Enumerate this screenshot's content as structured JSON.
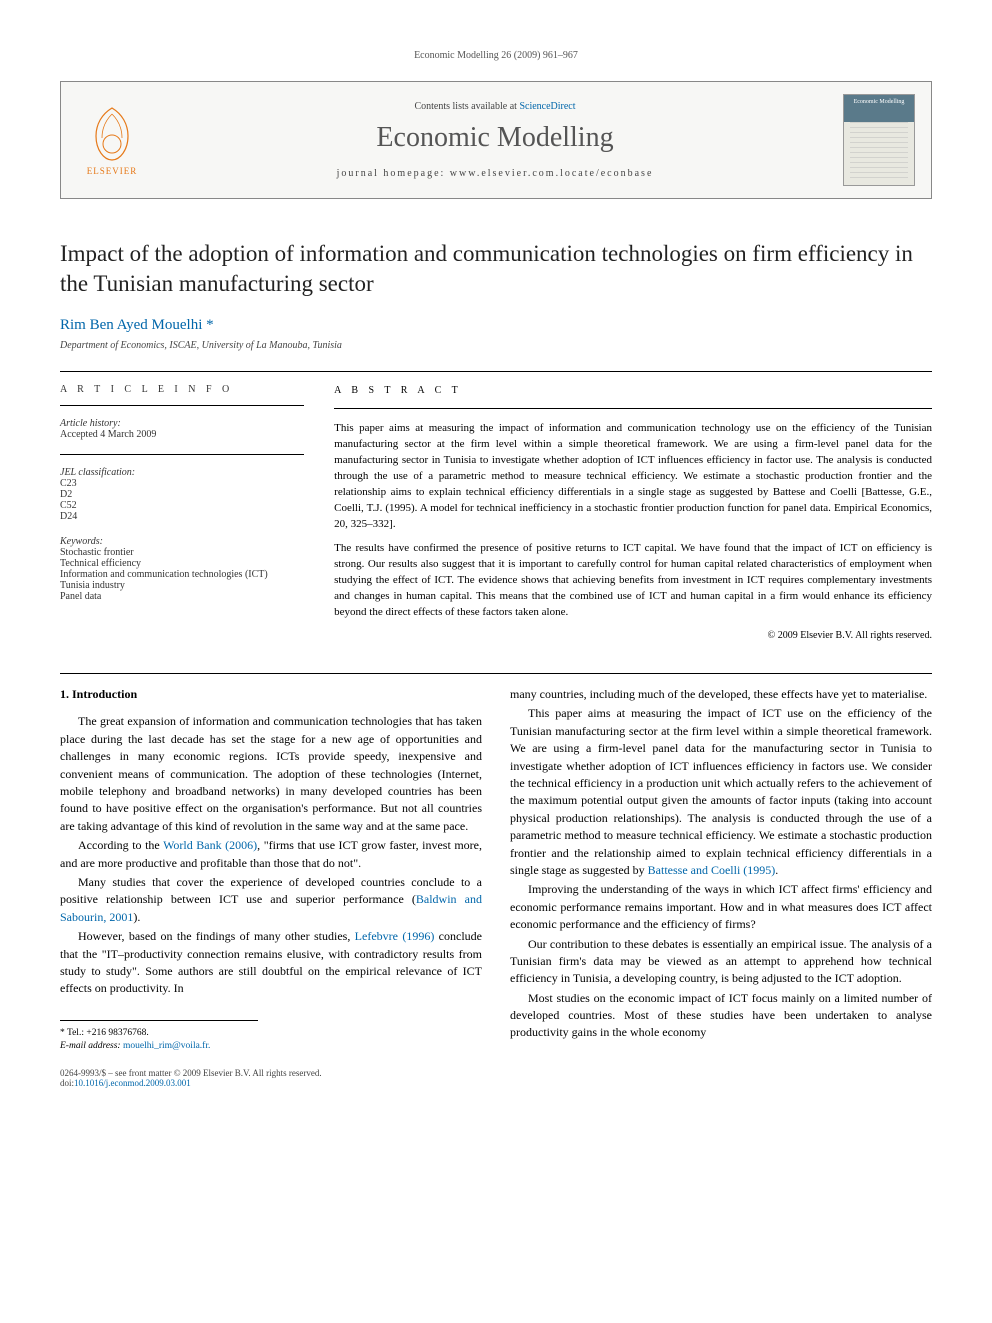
{
  "runningHeader": "Economic Modelling 26 (2009) 961–967",
  "header": {
    "contentsLine": "Contents lists available at",
    "contentsLink": "ScienceDirect",
    "journalName": "Economic Modelling",
    "homepageLabel": "journal homepage: www.elsevier.com.locate/econbase",
    "elsevierLabel": "ELSEVIER",
    "coverLabel": "Economic Modelling"
  },
  "title": "Impact of the adoption of information and communication technologies on firm efficiency in the Tunisian manufacturing sector",
  "author": "Rim Ben Ayed Mouelhi",
  "authorMark": "*",
  "affiliation": "Department of Economics, ISCAE, University of La Manouba, Tunisia",
  "info": {
    "heading": "A R T I C L E   I N F O",
    "historyLabel": "Article history:",
    "history": "Accepted 4 March 2009",
    "jelLabel": "JEL classification:",
    "jel": [
      "C23",
      "D2",
      "C52",
      "D24"
    ],
    "keywordsLabel": "Keywords:",
    "keywords": [
      "Stochastic frontier",
      "Technical efficiency",
      "Information and communication technologies (ICT)",
      "Tunisia industry",
      "Panel data"
    ]
  },
  "abstract": {
    "heading": "A B S T R A C T",
    "p1": "This paper aims at measuring the impact of information and communication technology use on the efficiency of the Tunisian manufacturing sector at the firm level within a simple theoretical framework. We are using a firm-level panel data for the manufacturing sector in Tunisia to investigate whether adoption of ICT influences efficiency in factor use. The analysis is conducted through the use of a parametric method to measure technical efficiency. We estimate a stochastic production frontier and the relationship aims to explain technical efficiency differentials in a single stage as suggested by Battese and Coelli [Battesse, G.E., Coelli, T.J. (1995). A model for technical inefficiency in a stochastic frontier production function for panel data. Empirical Economics, 20, 325–332].",
    "p2": "The results have confirmed the presence of positive returns to ICT capital. We have found that the impact of ICT on efficiency is strong. Our results also suggest that it is important to carefully control for human capital related characteristics of employment when studying the effect of ICT. The evidence shows that achieving benefits from investment in ICT requires complementary investments and changes in human capital. This means that the combined use of ICT and human capital in a firm would enhance its efficiency beyond the direct effects of these factors taken alone.",
    "copyright": "© 2009 Elsevier B.V. All rights reserved."
  },
  "body": {
    "sectionHeading": "1. Introduction",
    "paras": [
      "The great expansion of information and communication technologies that has taken place during the last decade has set the stage for a new age of opportunities and challenges in many economic regions. ICTs provide speedy, inexpensive and convenient means of communication. The adoption of these technologies (Internet, mobile telephony and broadband networks) in many developed countries has been found to have positive effect on the organisation's performance. But not all countries are taking advantage of this kind of revolution in the same way and at the same pace.",
      "According to the <span class=\"cite\">World Bank (2006)</span>, \"firms that use ICT grow faster, invest more, and are more productive and profitable than those that do not\".",
      "Many studies that cover the experience of developed countries conclude to a positive relationship between ICT use and superior performance (<span class=\"cite\">Baldwin and Sabourin, 2001</span>).",
      "However, based on the findings of many other studies, <span class=\"cite\">Lefebvre (1996)</span> conclude that the \"IT–productivity connection remains elusive, with contradictory results from study to study\". Some authors are still doubtful on the empirical relevance of ICT effects on productivity. In",
      "many countries, including much of the developed, these effects have yet to materialise.",
      "This paper aims at measuring the impact of ICT use on the efficiency of the Tunisian manufacturing sector at the firm level within a simple theoretical framework. We are using a firm-level panel data for the manufacturing sector in Tunisia to investigate whether adoption of ICT influences efficiency in factors use. We consider the technical efficiency in a production unit which actually refers to the achievement of the maximum potential output given the amounts of factor inputs (taking into account physical production relationships). The analysis is conducted through the use of a parametric method to measure technical efficiency. We estimate a stochastic production frontier and the relationship aimed to explain technical efficiency differentials in a single stage as suggested by <span class=\"cite\">Battesse and Coelli (1995)</span>.",
      "Improving the understanding of the ways in which ICT affect firms' efficiency and economic performance remains important. How and in what measures does ICT affect economic performance and the efficiency of firms?",
      "Our contribution to these debates is essentially an empirical issue. The analysis of a Tunisian firm's data may be viewed as an attempt to apprehend how technical efficiency in Tunisia, a developing country, is being adjusted to the ICT adoption.",
      "Most studies on the economic impact of ICT focus mainly on a limited number of developed countries. Most of these studies have been undertaken to analyse productivity gains in the whole economy"
    ]
  },
  "footnotes": {
    "tel": "* Tel.: +216 98376768.",
    "emailLabel": "E-mail address:",
    "email": "mouelhi_rim@voila.fr."
  },
  "footer": {
    "line1": "0264-9993/$ – see front matter © 2009 Elsevier B.V. All rights reserved.",
    "line2": "doi:10.1016/j.econmod.2009.03.001"
  }
}
